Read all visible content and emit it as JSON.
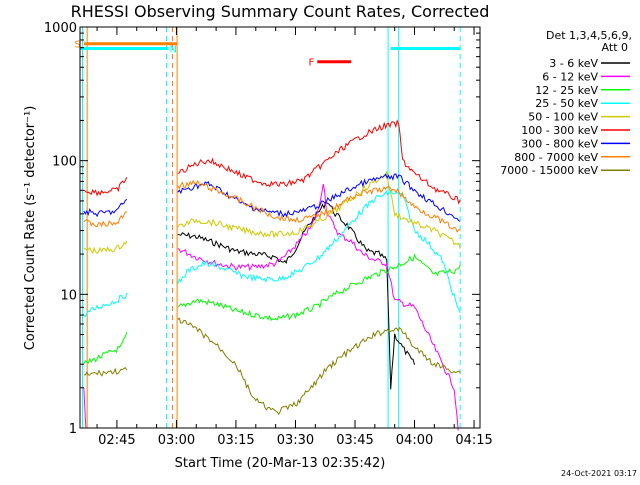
{
  "chart_data": {
    "type": "line",
    "title": "RHESSI Observing Summary Count Rates, Corrected",
    "xlabel": "Start Time (20-Mar-13 02:35:42)",
    "ylabel": "Corrected Count Rate (s⁻¹ detector⁻¹)",
    "x_unit": "UT time",
    "xlim": [
      "02:35:42",
      "04:16:30"
    ],
    "x_ticks": [
      "02:45",
      "03:00",
      "03:15",
      "03:30",
      "03:45",
      "04:00",
      "04:15"
    ],
    "y_scale": "log",
    "ylim": [
      1,
      1000
    ],
    "y_ticks": [
      "1",
      "10",
      "100",
      "1000"
    ],
    "grid": false,
    "legend_position": "right",
    "legend_header": [
      "Det 1,3,4,5,6,9,",
      "Att 0"
    ],
    "annotations": {
      "S": {
        "label": "S",
        "color": "#ff8000",
        "x_start": "02:36:40",
        "x_end": "03:00:10",
        "y": 750
      },
      "N": {
        "label": "N",
        "color": "#00ffff",
        "x_start": "02:35:42",
        "x_end": "02:58:00",
        "y": 690
      },
      "N2": {
        "label": "",
        "color": "#00ffff",
        "x_start": "03:54:00",
        "x_end": "04:11:30",
        "y": 690
      },
      "F": {
        "label": "F",
        "color": "#ff0000",
        "x_start": "03:35:30",
        "x_end": "03:44:00",
        "y": 550
      }
    },
    "vertical_lines": [
      {
        "x": "02:36:20",
        "color": "#00ffff",
        "style": "solid"
      },
      {
        "x": "02:37:30",
        "color": "#ff8000",
        "style": "solid"
      },
      {
        "x": "02:57:30",
        "color": "#00ffff",
        "style": "dashed"
      },
      {
        "x": "02:59:00",
        "color": "#ff8000",
        "style": "dashed"
      },
      {
        "x": "03:00:10",
        "color": "#ff8000",
        "style": "solid"
      },
      {
        "x": "03:53:20",
        "color": "#00ffff",
        "style": "solid"
      },
      {
        "x": "03:56:00",
        "color": "#00ffff",
        "style": "solid"
      },
      {
        "x": "04:11:30",
        "color": "#00ffff",
        "style": "dashed"
      }
    ],
    "series": [
      {
        "name": "3 - 6 keV",
        "color": "#000000",
        "data": [
          [
            "03:00:20",
            28
          ],
          [
            "03:05:00",
            27
          ],
          [
            "03:10:00",
            24
          ],
          [
            "03:15:00",
            21
          ],
          [
            "03:20:00",
            20
          ],
          [
            "03:25:00",
            19
          ],
          [
            "03:27:00",
            17
          ],
          [
            "03:28:00",
            18
          ],
          [
            "03:30:00",
            22
          ],
          [
            "03:33:00",
            32
          ],
          [
            "03:36:00",
            42
          ],
          [
            "03:38:00",
            50
          ],
          [
            "03:40:00",
            40
          ],
          [
            "03:43:00",
            33
          ],
          [
            "03:46:00",
            25
          ],
          [
            "03:48:00",
            21
          ],
          [
            "03:51:00",
            20
          ],
          [
            "03:53:00",
            18
          ],
          [
            "03:54:00",
            2
          ],
          [
            "03:55:00",
            5
          ],
          [
            "03:57:00",
            4
          ],
          [
            "04:00:00",
            3
          ]
        ]
      },
      {
        "name": "6 - 12 keV",
        "color": "#ff00ff",
        "data": [
          [
            "02:36:40",
            2
          ],
          [
            "02:37:10",
            1
          ],
          [
            "03:00:20",
            22
          ],
          [
            "03:05:00",
            19
          ],
          [
            "03:10:00",
            17
          ],
          [
            "03:15:00",
            16
          ],
          [
            "03:20:00",
            16
          ],
          [
            "03:25:00",
            17
          ],
          [
            "03:28:00",
            20
          ],
          [
            "03:31:00",
            25
          ],
          [
            "03:34:00",
            32
          ],
          [
            "03:36:00",
            45
          ],
          [
            "03:37:00",
            70
          ],
          [
            "03:38:00",
            40
          ],
          [
            "03:41:00",
            28
          ],
          [
            "03:44:00",
            25
          ],
          [
            "03:47:00",
            20
          ],
          [
            "03:50:00",
            18
          ],
          [
            "03:53:00",
            17
          ],
          [
            "03:55:00",
            9
          ],
          [
            "04:00:00",
            8
          ],
          [
            "04:05:00",
            4
          ],
          [
            "04:10:00",
            2
          ],
          [
            "04:11:00",
            1
          ]
        ]
      },
      {
        "name": "12 - 25 keV",
        "color": "#00ff00",
        "data": [
          [
            "02:36:40",
            3
          ],
          [
            "02:46:00",
            4
          ],
          [
            "02:47:30",
            5
          ],
          [
            "03:00:20",
            8
          ],
          [
            "03:05:00",
            9
          ],
          [
            "03:10:00",
            8.5
          ],
          [
            "03:15:00",
            7.5
          ],
          [
            "03:20:00",
            7
          ],
          [
            "03:25:00",
            6.5
          ],
          [
            "03:30:00",
            7
          ],
          [
            "03:35:00",
            8
          ],
          [
            "03:40:00",
            10
          ],
          [
            "03:45:00",
            12
          ],
          [
            "03:50:00",
            14
          ],
          [
            "03:55:00",
            16
          ],
          [
            "04:00:00",
            19
          ],
          [
            "04:05:00",
            14
          ],
          [
            "04:10:00",
            15
          ],
          [
            "04:11:30",
            16
          ]
        ]
      },
      {
        "name": "25 - 50 keV",
        "color": "#00ffff",
        "data": [
          [
            "02:36:40",
            7
          ],
          [
            "02:40:00",
            8
          ],
          [
            "02:45:00",
            9
          ],
          [
            "02:47:30",
            10
          ],
          [
            "03:00:20",
            12
          ],
          [
            "03:03:00",
            15
          ],
          [
            "03:07:00",
            17
          ],
          [
            "03:11:00",
            16
          ],
          [
            "03:16:00",
            14
          ],
          [
            "03:21:00",
            13
          ],
          [
            "03:26:00",
            13
          ],
          [
            "03:31:00",
            15
          ],
          [
            "03:36:00",
            19
          ],
          [
            "03:41:00",
            27
          ],
          [
            "03:46:00",
            40
          ],
          [
            "03:50:00",
            52
          ],
          [
            "03:54:00",
            58
          ],
          [
            "03:57:00",
            55
          ],
          [
            "04:00:00",
            30
          ],
          [
            "04:03:00",
            25
          ],
          [
            "04:07:00",
            18
          ],
          [
            "04:11:30",
            7
          ]
        ]
      },
      {
        "name": "50 - 100 keV",
        "color": "#cccc00",
        "data": [
          [
            "02:36:40",
            22
          ],
          [
            "02:40:00",
            21
          ],
          [
            "02:45:00",
            22
          ],
          [
            "02:47:30",
            25
          ],
          [
            "03:00:20",
            32
          ],
          [
            "03:05:00",
            36
          ],
          [
            "03:10:00",
            34
          ],
          [
            "03:15:00",
            31
          ],
          [
            "03:20:00",
            29
          ],
          [
            "03:25:00",
            28
          ],
          [
            "03:30:00",
            29
          ],
          [
            "03:35:00",
            34
          ],
          [
            "03:40:00",
            42
          ],
          [
            "03:45:00",
            55
          ],
          [
            "03:50:00",
            70
          ],
          [
            "03:53:00",
            80
          ],
          [
            "03:55:00",
            40
          ],
          [
            "04:00:00",
            34
          ],
          [
            "04:05:00",
            30
          ],
          [
            "04:11:30",
            23
          ]
        ]
      },
      {
        "name": "100 - 300 keV",
        "color": "#ff0000",
        "data": [
          [
            "02:36:40",
            60
          ],
          [
            "02:40:00",
            58
          ],
          [
            "02:45:00",
            60
          ],
          [
            "02:47:30",
            75
          ],
          [
            "03:00:20",
            80
          ],
          [
            "03:05:00",
            95
          ],
          [
            "03:08:00",
            101
          ],
          [
            "03:12:00",
            90
          ],
          [
            "03:17:00",
            76
          ],
          [
            "03:22:00",
            68
          ],
          [
            "03:27:00",
            66
          ],
          [
            "03:32:00",
            72
          ],
          [
            "03:37:00",
            95
          ],
          [
            "03:42:00",
            125
          ],
          [
            "03:47:00",
            155
          ],
          [
            "03:52:00",
            180
          ],
          [
            "03:56:00",
            190
          ],
          [
            "03:57:00",
            100
          ],
          [
            "04:00:00",
            80
          ],
          [
            "04:05:00",
            62
          ],
          [
            "04:11:30",
            50
          ]
        ]
      },
      {
        "name": "300 - 800 keV",
        "color": "#0000ff",
        "data": [
          [
            "02:36:40",
            42
          ],
          [
            "02:40:00",
            40
          ],
          [
            "02:45:00",
            42
          ],
          [
            "02:47:30",
            52
          ],
          [
            "03:00:20",
            58
          ],
          [
            "03:05:00",
            65
          ],
          [
            "03:08:00",
            67
          ],
          [
            "03:12:00",
            58
          ],
          [
            "03:17:00",
            47
          ],
          [
            "03:22:00",
            42
          ],
          [
            "03:27:00",
            40
          ],
          [
            "03:32:00",
            42
          ],
          [
            "03:37:00",
            48
          ],
          [
            "03:42:00",
            58
          ],
          [
            "03:47:00",
            68
          ],
          [
            "03:52:00",
            75
          ],
          [
            "03:56:00",
            76
          ],
          [
            "04:00:00",
            60
          ],
          [
            "04:05:00",
            47
          ],
          [
            "04:11:30",
            36
          ]
        ]
      },
      {
        "name": "800 - 7000 keV",
        "color": "#ff8000",
        "data": [
          [
            "02:36:40",
            35
          ],
          [
            "02:40:00",
            33
          ],
          [
            "02:45:00",
            34
          ],
          [
            "02:47:30",
            42
          ],
          [
            "03:00:20",
            65
          ],
          [
            "03:05:00",
            68
          ],
          [
            "03:10:00",
            60
          ],
          [
            "03:15:00",
            52
          ],
          [
            "03:20:00",
            44
          ],
          [
            "03:25:00",
            38
          ],
          [
            "03:30:00",
            36
          ],
          [
            "03:35:00",
            38
          ],
          [
            "03:40:00",
            45
          ],
          [
            "03:45:00",
            55
          ],
          [
            "03:50:00",
            60
          ],
          [
            "03:55:00",
            62
          ],
          [
            "04:00:00",
            45
          ],
          [
            "04:05:00",
            38
          ],
          [
            "04:11:30",
            29
          ]
        ]
      },
      {
        "name": "7000 - 15000 keV",
        "color": "#808000",
        "data": [
          [
            "02:36:40",
            2.5
          ],
          [
            "02:42:00",
            2.6
          ],
          [
            "02:47:30",
            2.7
          ],
          [
            "03:00:20",
            6.5
          ],
          [
            "03:05:00",
            5.5
          ],
          [
            "03:10:00",
            4.2
          ],
          [
            "03:15:00",
            3.0
          ],
          [
            "03:18:00",
            2.0
          ],
          [
            "03:20:00",
            1.6
          ],
          [
            "03:25:00",
            1.3
          ],
          [
            "03:30:00",
            1.5
          ],
          [
            "03:34:00",
            2.0
          ],
          [
            "03:38:00",
            2.8
          ],
          [
            "03:42:00",
            3.5
          ],
          [
            "03:46:00",
            4.2
          ],
          [
            "03:50:00",
            5.0
          ],
          [
            "03:54:00",
            5.5
          ],
          [
            "03:57:00",
            5.3
          ],
          [
            "04:00:00",
            4.0
          ],
          [
            "04:05:00",
            3.0
          ],
          [
            "04:11:30",
            2.6
          ]
        ]
      }
    ]
  },
  "footer": {
    "timestamp": "24-Oct-2021 03:17"
  }
}
